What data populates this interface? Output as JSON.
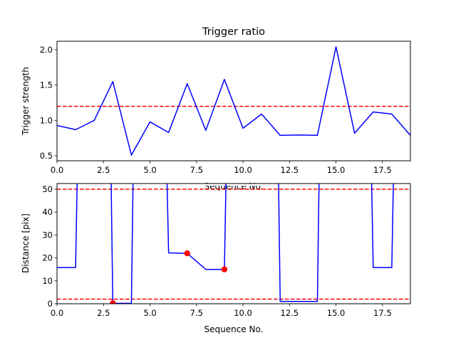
{
  "chart_data": [
    {
      "type": "line",
      "title": "Trigger ratio",
      "xlabel": "Sequence No.",
      "ylabel": "Trigger strength",
      "xlim": [
        0,
        19
      ],
      "ylim": [
        0.43,
        2.12
      ],
      "xticks": [
        0.0,
        2.5,
        5.0,
        7.5,
        10.0,
        12.5,
        15.0,
        17.5
      ],
      "xtick_labels": [
        "0.0",
        "2.5",
        "5.0",
        "7.5",
        "10.0",
        "12.5",
        "15.0",
        "17.5"
      ],
      "yticks": [
        0.5,
        1.0,
        1.5,
        2.0
      ],
      "ytick_labels": [
        "0.5",
        "1.0",
        "1.5",
        "2.0"
      ],
      "grid": false,
      "series": [
        {
          "color": "#0000ff",
          "x": [
            0,
            1,
            2,
            3,
            4,
            5,
            6,
            7,
            8,
            9,
            10,
            11,
            12,
            13,
            14,
            15,
            16,
            17,
            18,
            19
          ],
          "y": [
            0.93,
            0.87,
            1.0,
            1.55,
            0.51,
            0.98,
            0.83,
            1.52,
            0.86,
            1.58,
            0.89,
            1.09,
            0.79,
            0.795,
            0.79,
            2.04,
            0.82,
            1.12,
            1.09,
            0.79
          ]
        }
      ],
      "hlines": [
        {
          "y": 1.2,
          "color": "#ff0000",
          "style": "dashed"
        }
      ]
    },
    {
      "type": "line",
      "xlabel": "Sequence No.",
      "ylabel": "Distance [pix]",
      "xlim": [
        0,
        19
      ],
      "ylim": [
        0,
        52.5
      ],
      "xticks": [
        0.0,
        2.5,
        5.0,
        7.5,
        10.0,
        12.5,
        15.0,
        17.5
      ],
      "xtick_labels": [
        "0.0",
        "2.5",
        "5.0",
        "7.5",
        "10.0",
        "12.5",
        "15.0",
        "17.5"
      ],
      "yticks": [
        0,
        10,
        20,
        30,
        40,
        50
      ],
      "ytick_labels": [
        "0",
        "10",
        "20",
        "30",
        "40",
        "50"
      ],
      "grid": false,
      "series": [
        {
          "color": "#0000ff",
          "x": [
            0,
            1,
            1.1,
            2.9,
            3,
            4,
            4.1,
            5.9,
            6,
            7,
            8,
            9,
            9.1,
            11.9,
            12,
            14,
            14.1,
            16.9,
            17,
            18,
            18.1
          ],
          "y": [
            15.8,
            15.8,
            60,
            60,
            0.2,
            0.2,
            60,
            60,
            22.2,
            22.0,
            15.0,
            15.0,
            60,
            60,
            1.0,
            1.0,
            60,
            60,
            15.8,
            15.8,
            60
          ]
        }
      ],
      "points": {
        "color": "#ff0000",
        "x": [
          3,
          7,
          9
        ],
        "y": [
          0.2,
          22.0,
          15.0
        ]
      },
      "hlines": [
        {
          "y": 50,
          "color": "#ff0000",
          "style": "dashed"
        },
        {
          "y": 2,
          "color": "#ff0000",
          "style": "dashed"
        }
      ]
    }
  ]
}
